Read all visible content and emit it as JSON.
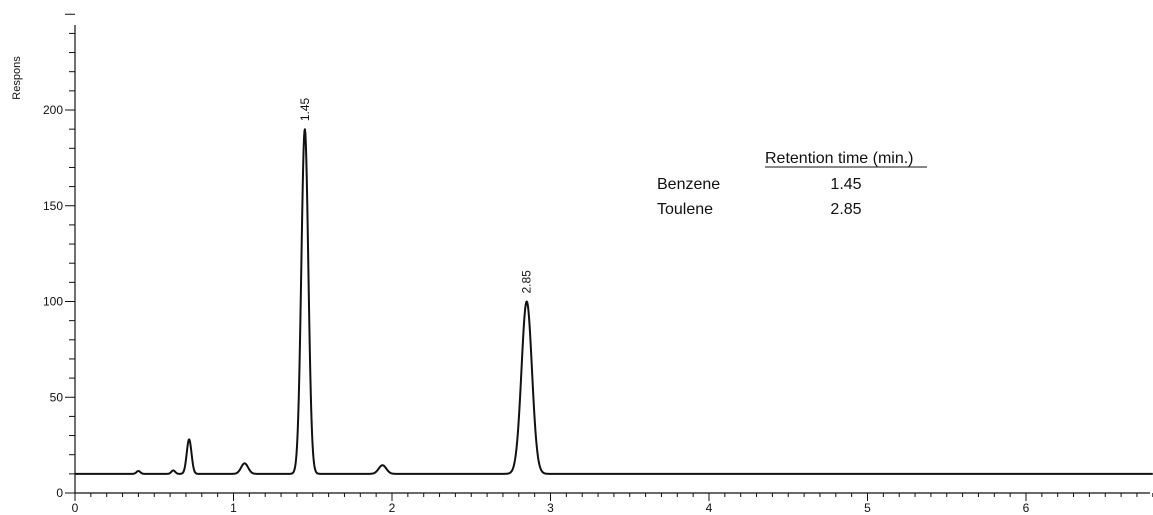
{
  "chart_data": {
    "type": "line",
    "title": "",
    "xlabel": "",
    "ylabel": "Respons",
    "xlim": [
      0,
      6.8
    ],
    "ylim": [
      0,
      250
    ],
    "x_ticks": [
      0,
      1,
      2,
      3,
      4,
      5,
      6
    ],
    "y_ticks": [
      0,
      50,
      100,
      150,
      200
    ],
    "grid": false,
    "baseline": 10,
    "peaks": [
      {
        "x": 0.4,
        "height": 11.5,
        "width": 0.012
      },
      {
        "x": 0.62,
        "height": 11.8,
        "width": 0.012
      },
      {
        "x": 0.72,
        "height": 28,
        "width": 0.015
      },
      {
        "x": 1.07,
        "height": 15.5,
        "width": 0.022
      },
      {
        "x": 1.45,
        "height": 190,
        "width": 0.022
      },
      {
        "x": 1.94,
        "height": 14.5,
        "width": 0.024
      },
      {
        "x": 2.85,
        "height": 100,
        "width": 0.033
      }
    ],
    "peak_labels": [
      {
        "x": 1.45,
        "y": 190,
        "text": "1.45"
      },
      {
        "x": 2.85,
        "y": 100,
        "text": "2.85"
      }
    ],
    "table": {
      "header": "Retention time (min.)",
      "rows": [
        {
          "compound": "Benzene",
          "time": "1.45"
        },
        {
          "compound": "Toulene",
          "time": "2.85"
        }
      ]
    }
  },
  "colors": {
    "trace": "#111111",
    "axis": "#111111"
  }
}
